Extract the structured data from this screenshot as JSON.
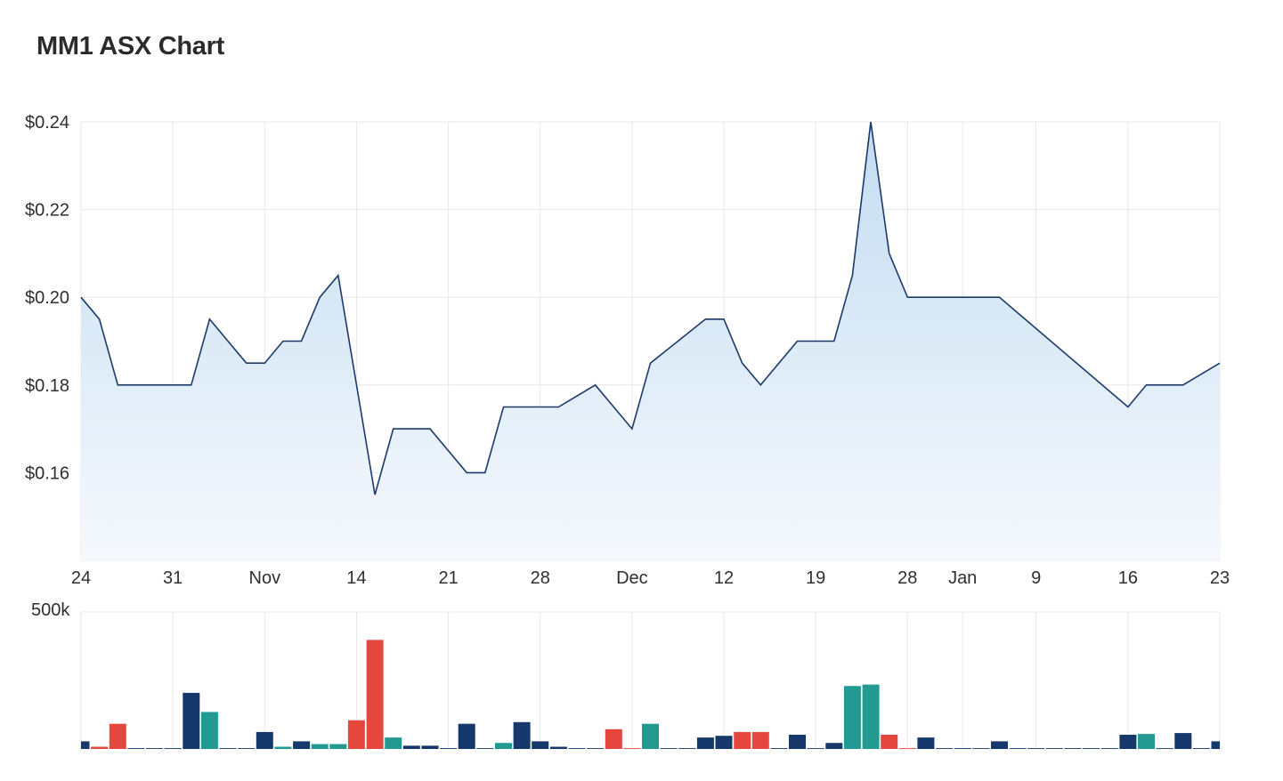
{
  "title": "MM1 ASX Chart",
  "colors": {
    "line": "#1b3a6b",
    "area_top": "#c3dcf1",
    "area_bottom": "#f6f9fd",
    "grid": "#e7e7e7",
    "vol_neutral": "#17386b",
    "vol_down": "#e5473f",
    "vol_up": "#229a92"
  },
  "chart_data": [
    {
      "type": "area",
      "y_tick_labels": [
        "$0.24",
        "$0.22",
        "$0.20",
        "$0.18",
        "$0.16"
      ],
      "y_ticks": [
        0.24,
        0.22,
        0.2,
        0.18,
        0.16
      ],
      "ylim": [
        0.14,
        0.24
      ],
      "x_tick_labels": [
        {
          "label": "24",
          "pos": 0
        },
        {
          "label": "31",
          "pos": 5
        },
        {
          "label": "Nov",
          "pos": 10
        },
        {
          "label": "14",
          "pos": 15
        },
        {
          "label": "21",
          "pos": 20
        },
        {
          "label": "28",
          "pos": 25
        },
        {
          "label": "Dec",
          "pos": 30
        },
        {
          "label": "12",
          "pos": 35
        },
        {
          "label": "19",
          "pos": 40
        },
        {
          "label": "28",
          "pos": 45
        },
        {
          "label": "Jan",
          "pos": 48
        },
        {
          "label": "9",
          "pos": 52
        },
        {
          "label": "16",
          "pos": 57
        },
        {
          "label": "23",
          "pos": 62
        }
      ],
      "x_range": [
        0,
        62
      ],
      "grid": true,
      "points": [
        [
          0,
          0.2
        ],
        [
          1,
          0.195
        ],
        [
          2,
          0.18
        ],
        [
          3,
          0.18
        ],
        [
          4,
          0.18
        ],
        [
          5,
          0.18
        ],
        [
          6,
          0.18
        ],
        [
          7,
          0.195
        ],
        [
          8,
          0.19
        ],
        [
          9,
          0.185
        ],
        [
          10,
          0.185
        ],
        [
          11,
          0.19
        ],
        [
          12,
          0.19
        ],
        [
          13,
          0.2
        ],
        [
          14,
          0.205
        ],
        [
          16,
          0.155
        ],
        [
          17,
          0.17
        ],
        [
          18,
          0.17
        ],
        [
          19,
          0.17
        ],
        [
          21,
          0.16
        ],
        [
          22,
          0.16
        ],
        [
          23,
          0.175
        ],
        [
          24,
          0.175
        ],
        [
          25,
          0.175
        ],
        [
          26,
          0.175
        ],
        [
          28,
          0.18
        ],
        [
          30,
          0.17
        ],
        [
          31,
          0.185
        ],
        [
          34,
          0.195
        ],
        [
          35,
          0.195
        ],
        [
          36,
          0.185
        ],
        [
          37,
          0.18
        ],
        [
          39,
          0.19
        ],
        [
          40,
          0.19
        ],
        [
          41,
          0.19
        ],
        [
          42,
          0.205
        ],
        [
          43,
          0.24
        ],
        [
          44,
          0.21
        ],
        [
          45,
          0.2
        ],
        [
          46,
          0.2
        ],
        [
          47,
          0.2
        ],
        [
          48,
          0.2
        ],
        [
          50,
          0.2
        ],
        [
          57,
          0.175
        ],
        [
          58,
          0.18
        ],
        [
          59,
          0.18
        ],
        [
          60,
          0.18
        ],
        [
          62,
          0.185
        ]
      ]
    },
    {
      "type": "bar",
      "title": "volume",
      "y_tick_labels": [
        "500k"
      ],
      "ylim": [
        0,
        500000
      ],
      "bars": [
        {
          "x": 0,
          "v": 28000,
          "c": "n"
        },
        {
          "x": 1,
          "v": 8000,
          "c": "d"
        },
        {
          "x": 2,
          "v": 92000,
          "c": "d"
        },
        {
          "x": 3,
          "v": 3000,
          "c": "n"
        },
        {
          "x": 4,
          "v": 3000,
          "c": "n"
        },
        {
          "x": 5,
          "v": 3000,
          "c": "n"
        },
        {
          "x": 6,
          "v": 205000,
          "c": "n"
        },
        {
          "x": 7,
          "v": 135000,
          "c": "u"
        },
        {
          "x": 8,
          "v": 3000,
          "c": "n"
        },
        {
          "x": 9,
          "v": 3000,
          "c": "n"
        },
        {
          "x": 10,
          "v": 62000,
          "c": "n"
        },
        {
          "x": 11,
          "v": 8000,
          "c": "u"
        },
        {
          "x": 12,
          "v": 28000,
          "c": "n"
        },
        {
          "x": 13,
          "v": 18000,
          "c": "u"
        },
        {
          "x": 14,
          "v": 18000,
          "c": "u"
        },
        {
          "x": 15,
          "v": 105000,
          "c": "d"
        },
        {
          "x": 16,
          "v": 398000,
          "c": "d"
        },
        {
          "x": 17,
          "v": 42000,
          "c": "u"
        },
        {
          "x": 18,
          "v": 12000,
          "c": "n"
        },
        {
          "x": 19,
          "v": 12000,
          "c": "n"
        },
        {
          "x": 20,
          "v": 3000,
          "c": "n"
        },
        {
          "x": 21,
          "v": 92000,
          "c": "n"
        },
        {
          "x": 22,
          "v": 3000,
          "c": "n"
        },
        {
          "x": 23,
          "v": 22000,
          "c": "u"
        },
        {
          "x": 24,
          "v": 98000,
          "c": "n"
        },
        {
          "x": 25,
          "v": 28000,
          "c": "n"
        },
        {
          "x": 26,
          "v": 8000,
          "c": "n"
        },
        {
          "x": 27,
          "v": 3000,
          "c": "n"
        },
        {
          "x": 28,
          "v": 3000,
          "c": "n"
        },
        {
          "x": 29,
          "v": 72000,
          "c": "d"
        },
        {
          "x": 30,
          "v": 3000,
          "c": "d"
        },
        {
          "x": 31,
          "v": 92000,
          "c": "u"
        },
        {
          "x": 32,
          "v": 3000,
          "c": "n"
        },
        {
          "x": 33,
          "v": 3000,
          "c": "n"
        },
        {
          "x": 34,
          "v": 42000,
          "c": "n"
        },
        {
          "x": 35,
          "v": 48000,
          "c": "n"
        },
        {
          "x": 36,
          "v": 62000,
          "c": "d"
        },
        {
          "x": 37,
          "v": 62000,
          "c": "d"
        },
        {
          "x": 38,
          "v": 3000,
          "c": "n"
        },
        {
          "x": 39,
          "v": 52000,
          "c": "n"
        },
        {
          "x": 40,
          "v": 3000,
          "c": "n"
        },
        {
          "x": 41,
          "v": 22000,
          "c": "n"
        },
        {
          "x": 42,
          "v": 230000,
          "c": "u"
        },
        {
          "x": 43,
          "v": 235000,
          "c": "u"
        },
        {
          "x": 44,
          "v": 52000,
          "c": "d"
        },
        {
          "x": 45,
          "v": 3000,
          "c": "d"
        },
        {
          "x": 46,
          "v": 42000,
          "c": "n"
        },
        {
          "x": 47,
          "v": 3000,
          "c": "n"
        },
        {
          "x": 48,
          "v": 3000,
          "c": "n"
        },
        {
          "x": 49,
          "v": 3000,
          "c": "n"
        },
        {
          "x": 50,
          "v": 28000,
          "c": "n"
        },
        {
          "x": 51,
          "v": 3000,
          "c": "n"
        },
        {
          "x": 52,
          "v": 3000,
          "c": "n"
        },
        {
          "x": 53,
          "v": 3000,
          "c": "n"
        },
        {
          "x": 54,
          "v": 3000,
          "c": "n"
        },
        {
          "x": 55,
          "v": 3000,
          "c": "n"
        },
        {
          "x": 56,
          "v": 3000,
          "c": "n"
        },
        {
          "x": 57,
          "v": 52000,
          "c": "n"
        },
        {
          "x": 58,
          "v": 55000,
          "c": "u"
        },
        {
          "x": 59,
          "v": 3000,
          "c": "n"
        },
        {
          "x": 60,
          "v": 58000,
          "c": "n"
        },
        {
          "x": 61,
          "v": 3000,
          "c": "n"
        },
        {
          "x": 62,
          "v": 28000,
          "c": "n"
        }
      ]
    }
  ]
}
